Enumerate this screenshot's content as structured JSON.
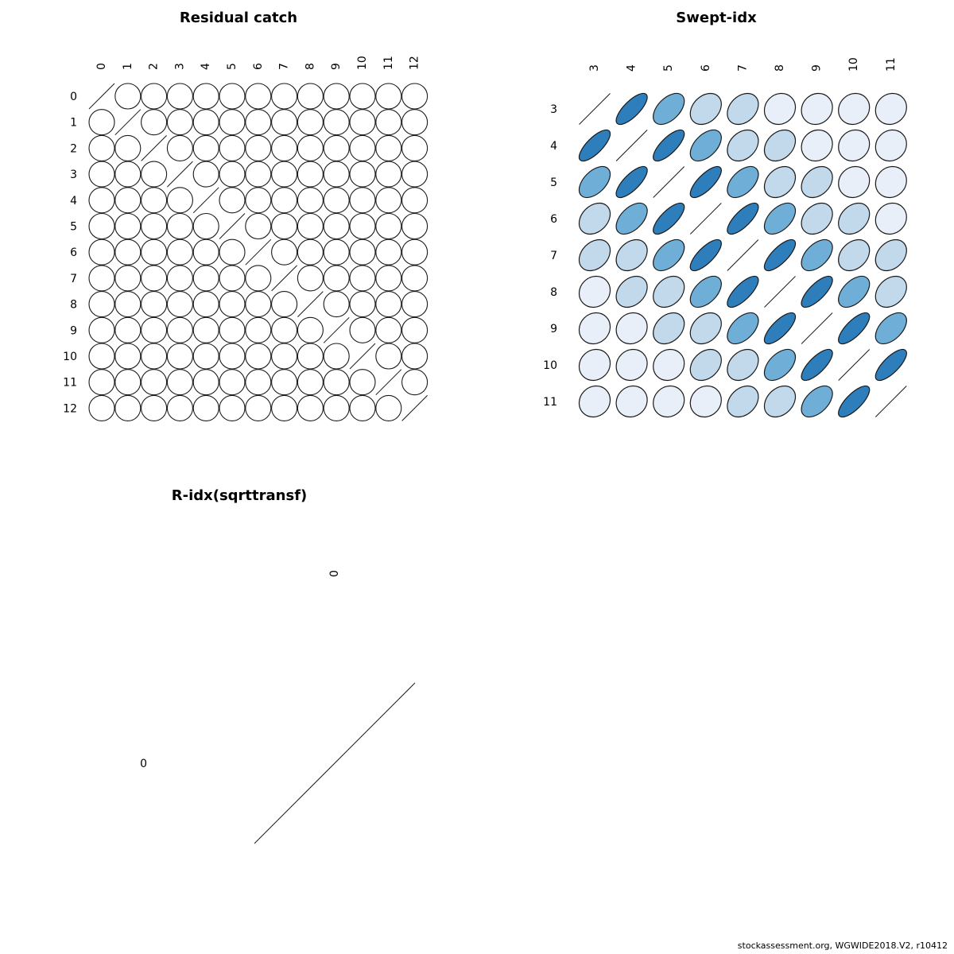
{
  "footer": {
    "text": "stockassessment.org, WGWIDE2018.V2, r10412"
  },
  "colors": {
    "stroke": "#1a1a1a",
    "diag_line": "#1a1a1a",
    "background": "#ffffff",
    "scale": [
      {
        "value": 0,
        "color": "#ffffff"
      },
      {
        "value": 0.1,
        "color": "#e9eff9"
      },
      {
        "value": 0.3,
        "color": "#c2d9ec"
      },
      {
        "value": 0.5,
        "color": "#6fafd7"
      },
      {
        "value": 0.75,
        "color": "#2e7ebc"
      }
    ]
  },
  "chart_data": [
    {
      "type": "heatmap",
      "subtype": "correlation-ellipse-matrix",
      "title": "Residual catch",
      "legend_position": "none",
      "grid": false,
      "labels": [
        "0",
        "1",
        "2",
        "3",
        "4",
        "5",
        "6",
        "7",
        "8",
        "9",
        "10",
        "11",
        "12"
      ],
      "matrix": [
        [
          1,
          0,
          0,
          0,
          0,
          0,
          0,
          0,
          0,
          0,
          0,
          0,
          0
        ],
        [
          0,
          1,
          0,
          0,
          0,
          0,
          0,
          0,
          0,
          0,
          0,
          0,
          0
        ],
        [
          0,
          0,
          1,
          0,
          0,
          0,
          0,
          0,
          0,
          0,
          0,
          0,
          0
        ],
        [
          0,
          0,
          0,
          1,
          0,
          0,
          0,
          0,
          0,
          0,
          0,
          0,
          0
        ],
        [
          0,
          0,
          0,
          0,
          1,
          0,
          0,
          0,
          0,
          0,
          0,
          0,
          0
        ],
        [
          0,
          0,
          0,
          0,
          0,
          1,
          0,
          0,
          0,
          0,
          0,
          0,
          0
        ],
        [
          0,
          0,
          0,
          0,
          0,
          0,
          1,
          0,
          0,
          0,
          0,
          0,
          0
        ],
        [
          0,
          0,
          0,
          0,
          0,
          0,
          0,
          1,
          0,
          0,
          0,
          0,
          0
        ],
        [
          0,
          0,
          0,
          0,
          0,
          0,
          0,
          0,
          1,
          0,
          0,
          0,
          0
        ],
        [
          0,
          0,
          0,
          0,
          0,
          0,
          0,
          0,
          0,
          1,
          0,
          0,
          0
        ],
        [
          0,
          0,
          0,
          0,
          0,
          0,
          0,
          0,
          0,
          0,
          1,
          0,
          0
        ],
        [
          0,
          0,
          0,
          0,
          0,
          0,
          0,
          0,
          0,
          0,
          0,
          1,
          0
        ],
        [
          0,
          0,
          0,
          0,
          0,
          0,
          0,
          0,
          0,
          0,
          0,
          0,
          1
        ]
      ]
    },
    {
      "type": "heatmap",
      "subtype": "correlation-ellipse-matrix",
      "title": "Swept-idx",
      "legend_position": "none",
      "grid": false,
      "labels": [
        "3",
        "4",
        "5",
        "6",
        "7",
        "8",
        "9",
        "10",
        "11"
      ],
      "matrix": [
        [
          1.0,
          0.75,
          0.5,
          0.3,
          0.3,
          0.1,
          0.1,
          0.1,
          0.1
        ],
        [
          0.75,
          1.0,
          0.75,
          0.5,
          0.3,
          0.3,
          0.1,
          0.1,
          0.1
        ],
        [
          0.5,
          0.75,
          1.0,
          0.75,
          0.5,
          0.3,
          0.3,
          0.1,
          0.1
        ],
        [
          0.3,
          0.5,
          0.75,
          1.0,
          0.75,
          0.5,
          0.3,
          0.3,
          0.1
        ],
        [
          0.3,
          0.3,
          0.5,
          0.75,
          1.0,
          0.75,
          0.5,
          0.3,
          0.3
        ],
        [
          0.1,
          0.3,
          0.3,
          0.5,
          0.75,
          1.0,
          0.75,
          0.5,
          0.3
        ],
        [
          0.1,
          0.1,
          0.3,
          0.3,
          0.5,
          0.75,
          1.0,
          0.75,
          0.5
        ],
        [
          0.1,
          0.1,
          0.1,
          0.3,
          0.3,
          0.5,
          0.75,
          1.0,
          0.75
        ],
        [
          0.1,
          0.1,
          0.1,
          0.1,
          0.3,
          0.3,
          0.5,
          0.75,
          1.0
        ]
      ]
    },
    {
      "type": "heatmap",
      "subtype": "correlation-ellipse-matrix",
      "title": "R-idx(sqrttransf)",
      "legend_position": "none",
      "grid": false,
      "labels": [
        "0"
      ],
      "matrix": [
        [
          1
        ]
      ]
    }
  ]
}
